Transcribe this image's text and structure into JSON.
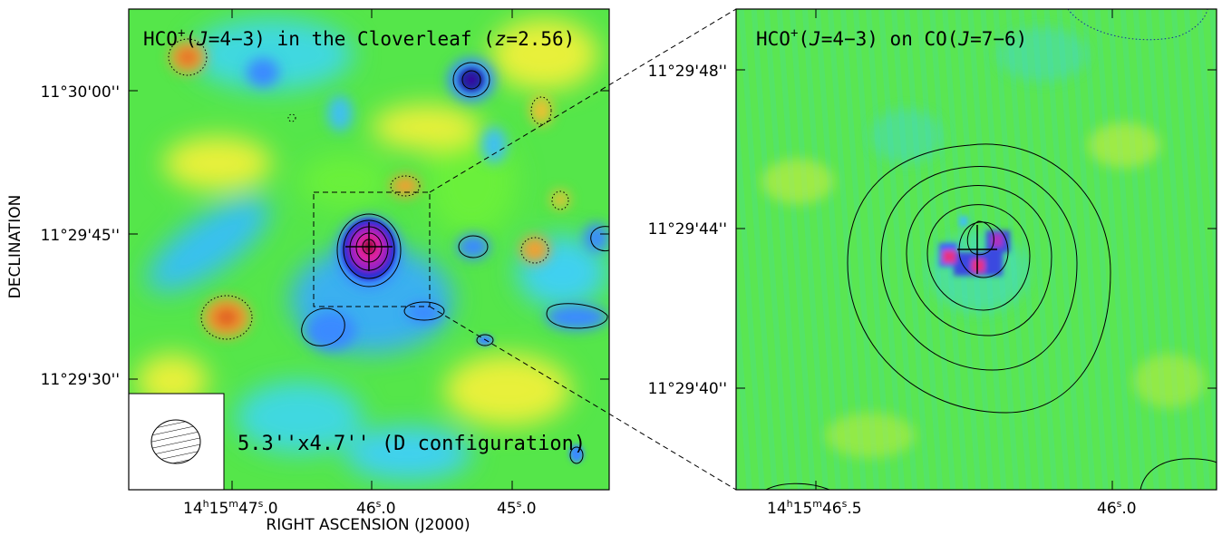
{
  "chart_data": [
    {
      "type": "heatmap",
      "title_parts": {
        "species": "HCO",
        "sup": "+",
        "trans_open": "(",
        "J": "J",
        "trans": "=4−3) in the Cloverleaf (",
        "z": "z",
        "zval": "=2.56)"
      },
      "xlabel": "RIGHT ASCENSION (J2000)",
      "ylabel": "DECLINATION",
      "yticks": [
        "11°30'00''",
        "11°29'45''",
        "11°29'30''"
      ],
      "xticks": [
        {
          "h": "14",
          "hs": "h",
          "m": "15",
          "ms": "m",
          "s": "47",
          "ss": "s",
          "f": ".0"
        },
        {
          "s": "46",
          "ss": "s",
          "f": ".0"
        },
        {
          "s": "45",
          "ss": "s",
          "f": ".0"
        }
      ],
      "beam_label": "5.3''x4.7'' (D configuration)",
      "colormap": [
        "#7a0a2a",
        "#1a2aa0",
        "#3a8aff",
        "#40d0f0",
        "#28e87a",
        "#6af03a",
        "#e8f03a",
        "#f0a030",
        "#e05a20"
      ]
    },
    {
      "type": "heatmap",
      "title_parts": {
        "species": "HCO",
        "sup": "+",
        "trans_open": "(",
        "J": "J",
        "trans": "=4−3) on CO(",
        "J2": "J",
        "trans2": "=7−6)"
      },
      "yticks": [
        "11°29'48''",
        "11°29'44''",
        "11°29'40''"
      ],
      "xticks": [
        {
          "h": "14",
          "hs": "h",
          "m": "15",
          "ms": "m",
          "s": "46",
          "ss": "s",
          "f": ".5"
        },
        {
          "s": "46",
          "ss": "s",
          "f": ".0"
        }
      ]
    }
  ]
}
